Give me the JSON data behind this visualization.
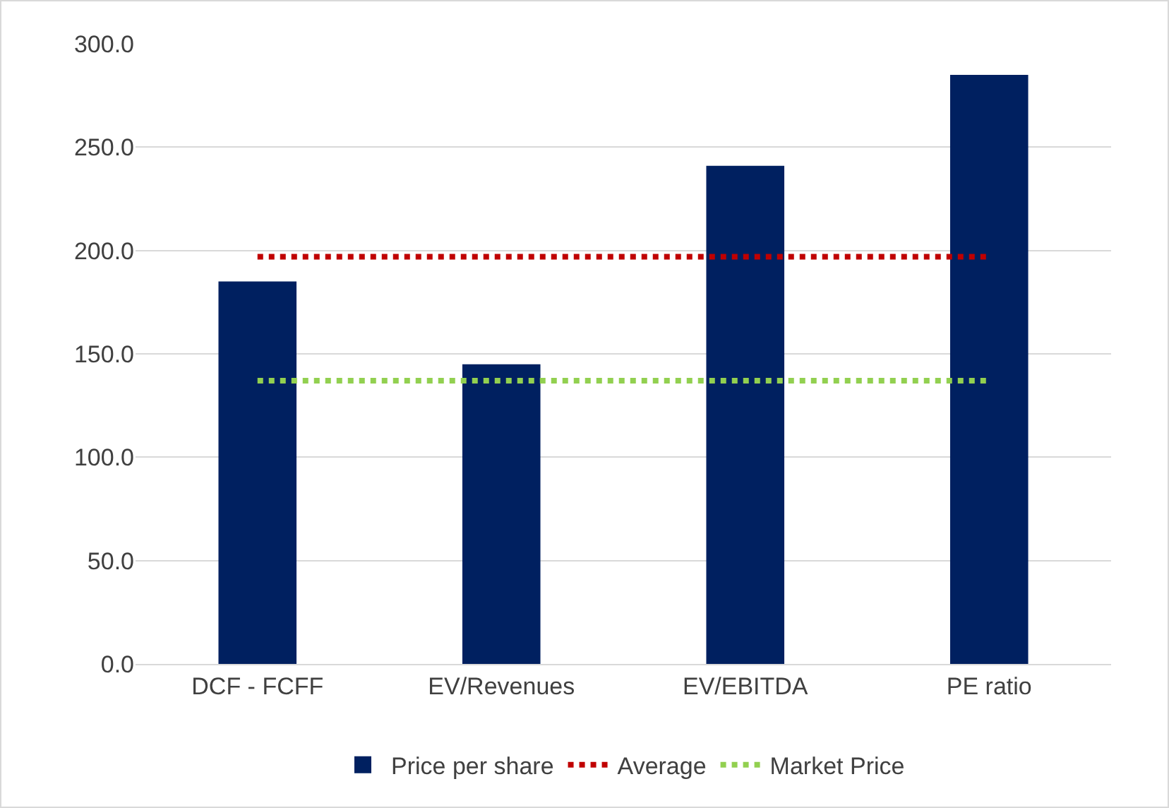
{
  "chart_data": {
    "type": "bar",
    "categories": [
      "DCF - FCFF",
      "EV/Revenues",
      "EV/EBITDA",
      "PE ratio"
    ],
    "series": [
      {
        "name": "Price per share",
        "color": "#002060",
        "values": [
          185,
          145,
          241,
          285
        ]
      },
      {
        "name": "Average",
        "type": "line",
        "color": "#c00000",
        "line_style": "dotted",
        "values": [
          197,
          197,
          197,
          197
        ]
      },
      {
        "name": "Market Price",
        "type": "line",
        "color": "#92d050",
        "line_style": "dotted",
        "values": [
          137,
          137,
          137,
          137
        ]
      }
    ],
    "ylim": [
      0,
      300
    ],
    "yticks": [
      {
        "value": 0,
        "label": "0.0"
      },
      {
        "value": 50,
        "label": "50.0"
      },
      {
        "value": 100,
        "label": "100.0"
      },
      {
        "value": 150,
        "label": "150.0"
      },
      {
        "value": 200,
        "label": "200.0"
      },
      {
        "value": 250,
        "label": "250.0"
      },
      {
        "value": 300,
        "label": "300.0"
      }
    ],
    "grid": "y",
    "legend": "bottom"
  }
}
